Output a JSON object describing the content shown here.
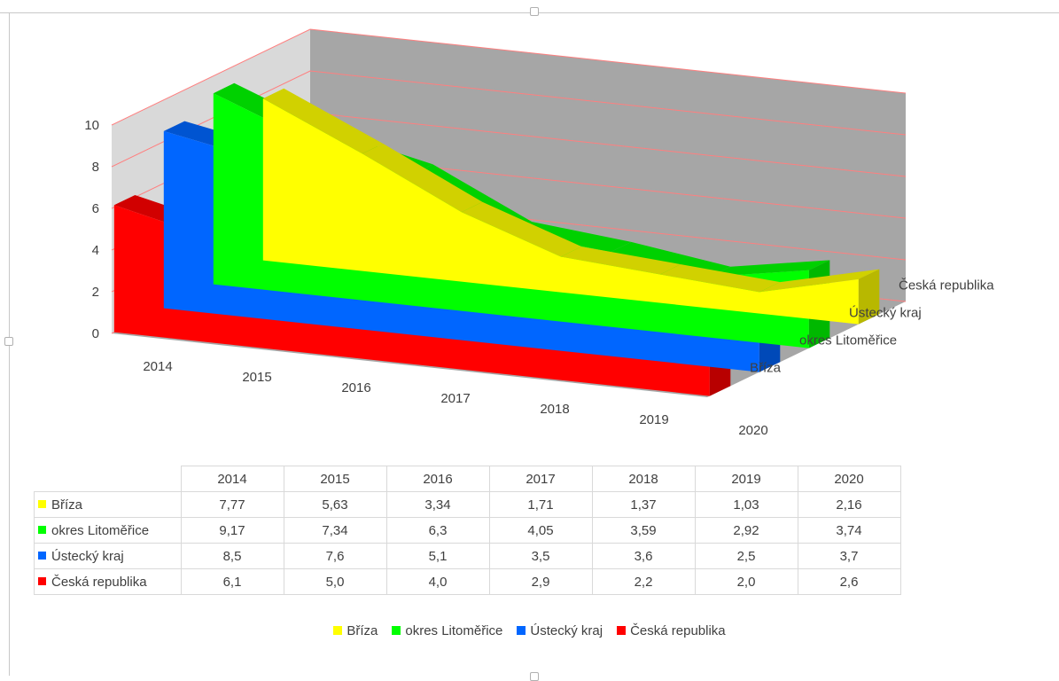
{
  "chart_data": {
    "type": "area",
    "subtype": "3d-area",
    "categories": [
      "2014",
      "2015",
      "2016",
      "2017",
      "2018",
      "2019",
      "2020"
    ],
    "series": [
      {
        "name": "Bříza",
        "color": "#ffff00",
        "values": [
          "7,77",
          "5,63",
          "3,34",
          "1,71",
          "1,37",
          "1,03",
          "2,16"
        ]
      },
      {
        "name": "okres Litoměřice",
        "color": "#00ff00",
        "values": [
          "9,17",
          "7,34",
          "6,3",
          "4,05",
          "3,59",
          "2,92",
          "3,74"
        ]
      },
      {
        "name": "Ústecký kraj",
        "color": "#0066ff",
        "values": [
          "8,5",
          "7,6",
          "5,1",
          "3,5",
          "3,6",
          "2,5",
          "3,7"
        ]
      },
      {
        "name": "Česká republika",
        "color": "#ff0000",
        "values": [
          "6,1",
          "5,0",
          "4,0",
          "2,9",
          "2,2",
          "2,0",
          "2,6"
        ]
      }
    ],
    "y_ticks": [
      "0",
      "2",
      "4",
      "6",
      "8",
      "10"
    ],
    "ylim": [
      0,
      10
    ],
    "depth_labels": [
      "Česká republika",
      "Ústecký kraj",
      "okres Litoměřice",
      "Bříza"
    ],
    "gridlines": true,
    "data_table": true,
    "legend_position": "bottom"
  }
}
